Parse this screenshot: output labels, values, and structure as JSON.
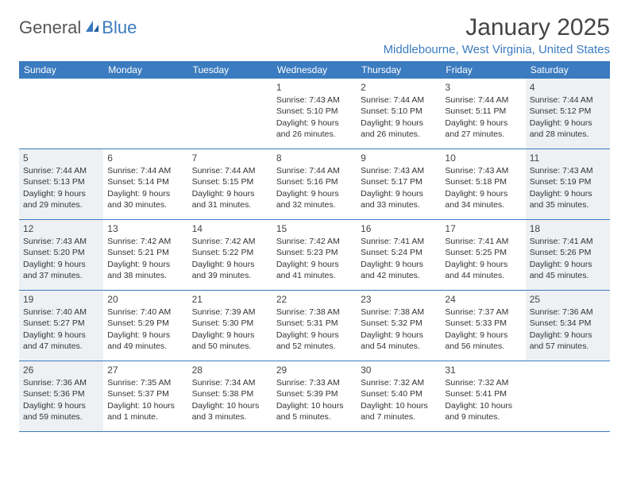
{
  "logo": {
    "text1": "General",
    "text2": "Blue"
  },
  "title": "January 2025",
  "location": "Middlebourne, West Virginia, United States",
  "weekdays": [
    "Sunday",
    "Monday",
    "Tuesday",
    "Wednesday",
    "Thursday",
    "Friday",
    "Saturday"
  ],
  "colors": {
    "header_bg": "#3b7bbf",
    "shaded_bg": "#eef1f3",
    "text": "#333333"
  },
  "weeks": [
    [
      {
        "num": "",
        "lines": []
      },
      {
        "num": "",
        "lines": []
      },
      {
        "num": "",
        "lines": []
      },
      {
        "num": "1",
        "lines": [
          "Sunrise: 7:43 AM",
          "Sunset: 5:10 PM",
          "Daylight: 9 hours",
          "and 26 minutes."
        ]
      },
      {
        "num": "2",
        "lines": [
          "Sunrise: 7:44 AM",
          "Sunset: 5:10 PM",
          "Daylight: 9 hours",
          "and 26 minutes."
        ]
      },
      {
        "num": "3",
        "lines": [
          "Sunrise: 7:44 AM",
          "Sunset: 5:11 PM",
          "Daylight: 9 hours",
          "and 27 minutes."
        ]
      },
      {
        "num": "4",
        "lines": [
          "Sunrise: 7:44 AM",
          "Sunset: 5:12 PM",
          "Daylight: 9 hours",
          "and 28 minutes."
        ]
      }
    ],
    [
      {
        "num": "5",
        "lines": [
          "Sunrise: 7:44 AM",
          "Sunset: 5:13 PM",
          "Daylight: 9 hours",
          "and 29 minutes."
        ]
      },
      {
        "num": "6",
        "lines": [
          "Sunrise: 7:44 AM",
          "Sunset: 5:14 PM",
          "Daylight: 9 hours",
          "and 30 minutes."
        ]
      },
      {
        "num": "7",
        "lines": [
          "Sunrise: 7:44 AM",
          "Sunset: 5:15 PM",
          "Daylight: 9 hours",
          "and 31 minutes."
        ]
      },
      {
        "num": "8",
        "lines": [
          "Sunrise: 7:44 AM",
          "Sunset: 5:16 PM",
          "Daylight: 9 hours",
          "and 32 minutes."
        ]
      },
      {
        "num": "9",
        "lines": [
          "Sunrise: 7:43 AM",
          "Sunset: 5:17 PM",
          "Daylight: 9 hours",
          "and 33 minutes."
        ]
      },
      {
        "num": "10",
        "lines": [
          "Sunrise: 7:43 AM",
          "Sunset: 5:18 PM",
          "Daylight: 9 hours",
          "and 34 minutes."
        ]
      },
      {
        "num": "11",
        "lines": [
          "Sunrise: 7:43 AM",
          "Sunset: 5:19 PM",
          "Daylight: 9 hours",
          "and 35 minutes."
        ]
      }
    ],
    [
      {
        "num": "12",
        "lines": [
          "Sunrise: 7:43 AM",
          "Sunset: 5:20 PM",
          "Daylight: 9 hours",
          "and 37 minutes."
        ]
      },
      {
        "num": "13",
        "lines": [
          "Sunrise: 7:42 AM",
          "Sunset: 5:21 PM",
          "Daylight: 9 hours",
          "and 38 minutes."
        ]
      },
      {
        "num": "14",
        "lines": [
          "Sunrise: 7:42 AM",
          "Sunset: 5:22 PM",
          "Daylight: 9 hours",
          "and 39 minutes."
        ]
      },
      {
        "num": "15",
        "lines": [
          "Sunrise: 7:42 AM",
          "Sunset: 5:23 PM",
          "Daylight: 9 hours",
          "and 41 minutes."
        ]
      },
      {
        "num": "16",
        "lines": [
          "Sunrise: 7:41 AM",
          "Sunset: 5:24 PM",
          "Daylight: 9 hours",
          "and 42 minutes."
        ]
      },
      {
        "num": "17",
        "lines": [
          "Sunrise: 7:41 AM",
          "Sunset: 5:25 PM",
          "Daylight: 9 hours",
          "and 44 minutes."
        ]
      },
      {
        "num": "18",
        "lines": [
          "Sunrise: 7:41 AM",
          "Sunset: 5:26 PM",
          "Daylight: 9 hours",
          "and 45 minutes."
        ]
      }
    ],
    [
      {
        "num": "19",
        "lines": [
          "Sunrise: 7:40 AM",
          "Sunset: 5:27 PM",
          "Daylight: 9 hours",
          "and 47 minutes."
        ]
      },
      {
        "num": "20",
        "lines": [
          "Sunrise: 7:40 AM",
          "Sunset: 5:29 PM",
          "Daylight: 9 hours",
          "and 49 minutes."
        ]
      },
      {
        "num": "21",
        "lines": [
          "Sunrise: 7:39 AM",
          "Sunset: 5:30 PM",
          "Daylight: 9 hours",
          "and 50 minutes."
        ]
      },
      {
        "num": "22",
        "lines": [
          "Sunrise: 7:38 AM",
          "Sunset: 5:31 PM",
          "Daylight: 9 hours",
          "and 52 minutes."
        ]
      },
      {
        "num": "23",
        "lines": [
          "Sunrise: 7:38 AM",
          "Sunset: 5:32 PM",
          "Daylight: 9 hours",
          "and 54 minutes."
        ]
      },
      {
        "num": "24",
        "lines": [
          "Sunrise: 7:37 AM",
          "Sunset: 5:33 PM",
          "Daylight: 9 hours",
          "and 56 minutes."
        ]
      },
      {
        "num": "25",
        "lines": [
          "Sunrise: 7:36 AM",
          "Sunset: 5:34 PM",
          "Daylight: 9 hours",
          "and 57 minutes."
        ]
      }
    ],
    [
      {
        "num": "26",
        "lines": [
          "Sunrise: 7:36 AM",
          "Sunset: 5:36 PM",
          "Daylight: 9 hours",
          "and 59 minutes."
        ]
      },
      {
        "num": "27",
        "lines": [
          "Sunrise: 7:35 AM",
          "Sunset: 5:37 PM",
          "Daylight: 10 hours",
          "and 1 minute."
        ]
      },
      {
        "num": "28",
        "lines": [
          "Sunrise: 7:34 AM",
          "Sunset: 5:38 PM",
          "Daylight: 10 hours",
          "and 3 minutes."
        ]
      },
      {
        "num": "29",
        "lines": [
          "Sunrise: 7:33 AM",
          "Sunset: 5:39 PM",
          "Daylight: 10 hours",
          "and 5 minutes."
        ]
      },
      {
        "num": "30",
        "lines": [
          "Sunrise: 7:32 AM",
          "Sunset: 5:40 PM",
          "Daylight: 10 hours",
          "and 7 minutes."
        ]
      },
      {
        "num": "31",
        "lines": [
          "Sunrise: 7:32 AM",
          "Sunset: 5:41 PM",
          "Daylight: 10 hours",
          "and 9 minutes."
        ]
      },
      {
        "num": "",
        "lines": []
      }
    ]
  ]
}
